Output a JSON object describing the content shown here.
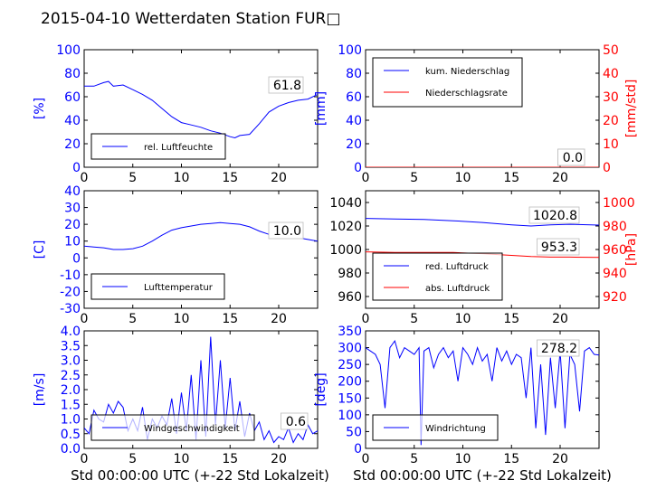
{
  "figure": {
    "title": "2015-04-10 Wetterdaten Station FUR□",
    "xlabel": "Std 00:00:00 UTC (+-22 Std Lokalzeit)"
  },
  "colors": {
    "primary": "#0000ff",
    "secondary": "#ff0000",
    "axis": "#000000",
    "legend_border": "#000000"
  },
  "chart_data": [
    {
      "type": "line",
      "title": "",
      "xlabel": "",
      "ylabel": "[%]",
      "xlim": [
        0,
        24
      ],
      "ylim": [
        0,
        100
      ],
      "xticks": [
        0,
        5,
        10,
        15,
        20
      ],
      "yticks": [
        0,
        20,
        40,
        60,
        80,
        100
      ],
      "legend": {
        "placement": "lower-left",
        "entries": [
          "rel. Luftfeuchte"
        ]
      },
      "annotations": [
        "61.8"
      ],
      "series": [
        {
          "name": "rel. Luftfeuchte",
          "color": "#0000ff",
          "x": [
            0,
            1,
            2,
            2.5,
            3,
            4,
            5,
            6,
            7,
            8,
            9,
            10,
            11,
            12,
            13,
            14,
            15,
            15.5,
            16,
            17,
            18,
            19,
            20,
            21,
            22,
            23,
            24
          ],
          "y": [
            69,
            69,
            72,
            73,
            69,
            70,
            66,
            62,
            57,
            50,
            43,
            38,
            36,
            34,
            31,
            29,
            26,
            25,
            27,
            28,
            37,
            47,
            52,
            55,
            57,
            58,
            62
          ]
        }
      ]
    },
    {
      "type": "line",
      "title": "",
      "xlabel": "",
      "ylabel": "[mm]",
      "ylabel2": "[mm/std]",
      "xlim": [
        0,
        24
      ],
      "ylim": [
        0,
        100
      ],
      "ylim2": [
        0,
        50
      ],
      "xticks": [
        0,
        5,
        10,
        15,
        20
      ],
      "yticks": [
        0,
        20,
        40,
        60,
        80,
        100
      ],
      "yticks2": [
        0,
        10,
        20,
        30,
        40,
        50
      ],
      "legend": {
        "placement": "upper-left",
        "entries": [
          "kum. Niederschlag",
          "Niederschlagsrate"
        ]
      },
      "annotations": [
        "0.0",
        "0.0"
      ],
      "series": [
        {
          "name": "kum. Niederschlag",
          "color": "#0000ff",
          "axis": "left",
          "x": [
            0,
            24
          ],
          "y": [
            0,
            0
          ]
        },
        {
          "name": "Niederschlagsrate",
          "color": "#ff0000",
          "axis": "right",
          "x": [
            0,
            24
          ],
          "y": [
            0,
            0
          ]
        }
      ]
    },
    {
      "type": "line",
      "title": "",
      "xlabel": "",
      "ylabel": "[C]",
      "xlim": [
        0,
        24
      ],
      "ylim": [
        -30,
        40
      ],
      "xticks": [
        0,
        5,
        10,
        15,
        20
      ],
      "yticks": [
        -30,
        -20,
        -10,
        0,
        10,
        20,
        30,
        40
      ],
      "legend": {
        "placement": "lower-left",
        "entries": [
          "Lufttemperatur"
        ]
      },
      "annotations": [
        "10.0"
      ],
      "series": [
        {
          "name": "Lufttemperatur",
          "color": "#0000ff",
          "x": [
            0,
            1,
            2,
            3,
            4,
            5,
            6,
            7,
            8,
            9,
            10,
            11,
            12,
            13,
            14,
            15,
            16,
            17,
            18,
            19,
            20,
            21,
            22,
            23,
            24
          ],
          "y": [
            7,
            6.5,
            6,
            5,
            5,
            5.5,
            7,
            10,
            13.5,
            16.5,
            18,
            19,
            20,
            20.5,
            21,
            20.5,
            20,
            18.5,
            16,
            14,
            13,
            12.5,
            12,
            11,
            10
          ]
        }
      ]
    },
    {
      "type": "line",
      "title": "",
      "xlabel": "",
      "ylabel": "",
      "ylabel2": "[hPa]",
      "xlim": [
        0,
        24
      ],
      "ylim": [
        950,
        1050
      ],
      "ylim2": [
        910,
        1010
      ],
      "xticks": [
        0,
        5,
        10,
        15,
        20
      ],
      "yticks": [
        960,
        980,
        1000,
        1020,
        1040
      ],
      "yticks2": [
        920,
        940,
        960,
        980,
        1000
      ],
      "legend": {
        "placement": "lower-left",
        "entries": [
          "red. Luftdruck",
          "abs. Luftdruck"
        ]
      },
      "annotations": [
        "1020.8",
        "953.3"
      ],
      "series": [
        {
          "name": "red. Luftdruck",
          "color": "#0000ff",
          "axis": "left",
          "x": [
            0,
            3,
            6,
            9,
            12,
            15,
            17,
            19,
            21,
            24
          ],
          "y": [
            1026.5,
            1026,
            1025.5,
            1024.5,
            1023,
            1021,
            1020,
            1021,
            1021.5,
            1020.8
          ]
        },
        {
          "name": "abs. Luftdruck",
          "color": "#ff0000",
          "axis": "right",
          "x": [
            0,
            3,
            6,
            9,
            12,
            15,
            17,
            19,
            21,
            24
          ],
          "y": [
            958,
            957.5,
            957.5,
            957.5,
            956.5,
            955,
            954,
            953.5,
            953.5,
            953.3
          ]
        }
      ]
    },
    {
      "type": "line",
      "title": "",
      "xlabel": "Std 00:00:00 UTC (+-22 Std Lokalzeit)",
      "ylabel": "[m/s]",
      "xlim": [
        0,
        24
      ],
      "ylim": [
        0,
        4
      ],
      "xticks": [
        0,
        5,
        10,
        15,
        20
      ],
      "yticks": [
        0.0,
        0.5,
        1.0,
        1.5,
        2.0,
        2.5,
        3.0,
        3.5,
        4.0
      ],
      "legend": {
        "placement": "lower-left",
        "entries": [
          "Windgeschwindigkeit"
        ]
      },
      "annotations": [
        "0.6"
      ],
      "series": [
        {
          "name": "Windgeschwindigkeit",
          "color": "#0000ff",
          "x": [
            0,
            0.5,
            1,
            1.5,
            2,
            2.5,
            3,
            3.5,
            4,
            4.5,
            5,
            5.5,
            6,
            6.5,
            7,
            7.5,
            8,
            8.5,
            9,
            9.5,
            10,
            10.5,
            11,
            11.5,
            12,
            12.5,
            13,
            13.5,
            14,
            14.5,
            15,
            15.5,
            16,
            16.5,
            17,
            17.5,
            18,
            18.5,
            19,
            19.5,
            20,
            20.5,
            21,
            21.5,
            22,
            22.5,
            23,
            23.5,
            24
          ],
          "y": [
            0.7,
            0.5,
            1.3,
            1.0,
            0.9,
            1.5,
            1.2,
            1.6,
            1.4,
            0.6,
            1.0,
            0.6,
            1.4,
            0.3,
            1.0,
            0.7,
            1.1,
            0.8,
            1.7,
            0.5,
            1.9,
            0.6,
            2.5,
            0.3,
            3.0,
            0.4,
            3.8,
            0.8,
            3.0,
            0.7,
            2.4,
            0.6,
            1.6,
            0.4,
            1.2,
            0.6,
            0.9,
            0.3,
            0.6,
            0.2,
            0.4,
            0.3,
            0.7,
            0.2,
            0.5,
            0.3,
            0.8,
            0.5,
            0.6
          ]
        }
      ]
    },
    {
      "type": "line",
      "title": "",
      "xlabel": "Std 00:00:00 UTC (+-22 Std Lokalzeit)",
      "ylabel": "[deg]",
      "xlim": [
        0,
        24
      ],
      "ylim": [
        0,
        350
      ],
      "xticks": [
        0,
        5,
        10,
        15,
        20
      ],
      "yticks": [
        0,
        50,
        100,
        150,
        200,
        250,
        300,
        350
      ],
      "legend": {
        "placement": "lower-left",
        "entries": [
          "Windrichtung"
        ]
      },
      "annotations": [
        "278.2"
      ],
      "series": [
        {
          "name": "Windrichtung",
          "color": "#0000ff",
          "x": [
            0,
            0.5,
            1,
            1.5,
            2,
            2.5,
            3,
            3.5,
            4,
            4.5,
            5,
            5.5,
            5.7,
            6,
            6.5,
            7,
            7.5,
            8,
            8.5,
            9,
            9.5,
            10,
            10.5,
            11,
            11.5,
            12,
            12.5,
            13,
            13.5,
            14,
            14.5,
            15,
            15.5,
            16,
            16.5,
            17,
            17.5,
            18,
            18.5,
            19,
            19.5,
            20,
            20.5,
            21,
            21.5,
            22,
            22.5,
            23,
            23.5,
            24
          ],
          "y": [
            300,
            290,
            280,
            250,
            120,
            300,
            320,
            270,
            300,
            290,
            280,
            300,
            10,
            290,
            300,
            240,
            280,
            300,
            270,
            290,
            200,
            300,
            280,
            250,
            300,
            260,
            280,
            200,
            300,
            260,
            290,
            250,
            280,
            270,
            150,
            300,
            60,
            250,
            40,
            270,
            120,
            290,
            60,
            280,
            250,
            110,
            290,
            300,
            280,
            278
          ]
        }
      ]
    }
  ]
}
